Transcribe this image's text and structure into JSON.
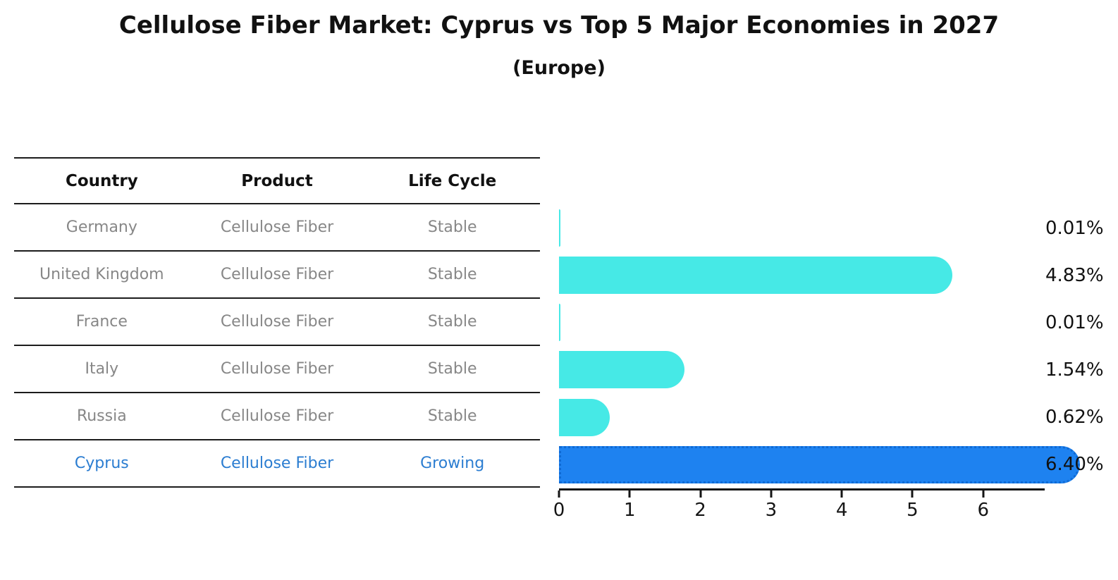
{
  "title": "Cellulose Fiber Market: Cyprus vs Top 5 Major Economies in 2027",
  "subtitle": "(Europe)",
  "table": {
    "headers": [
      "Country",
      "Product",
      "Life Cycle"
    ],
    "rows": [
      {
        "country": "Germany",
        "product": "Cellulose Fiber",
        "life_cycle": "Stable"
      },
      {
        "country": "United Kingdom",
        "product": "Cellulose Fiber",
        "life_cycle": "Stable"
      },
      {
        "country": "France",
        "product": "Cellulose Fiber",
        "life_cycle": "Stable"
      },
      {
        "country": "Italy",
        "product": "Cellulose Fiber",
        "life_cycle": "Stable"
      },
      {
        "country": "Russia",
        "product": "Cellulose Fiber",
        "life_cycle": "Stable"
      },
      {
        "country": "Cyprus",
        "product": "Cellulose Fiber",
        "life_cycle": "Growing"
      }
    ]
  },
  "chart_data": {
    "type": "bar",
    "orientation": "horizontal",
    "title": "Cellulose Fiber Market: Cyprus vs Top 5 Major Economies in 2027 (Europe)",
    "categories": [
      "Germany",
      "United Kingdom",
      "France",
      "Italy",
      "Russia",
      "Cyprus"
    ],
    "values": [
      0.01,
      4.83,
      0.01,
      1.54,
      0.62,
      6.4
    ],
    "value_labels": [
      "0.01%",
      "4.83%",
      "0.01%",
      "1.54%",
      "0.62%",
      "6.40%"
    ],
    "unit": "%",
    "x_ticks": [
      0,
      1,
      2,
      3,
      4,
      5,
      6
    ],
    "xlim": [
      0,
      6.87
    ],
    "xlabel": "",
    "ylabel": "",
    "grid": false,
    "legend": false,
    "highlight_index": 5
  },
  "colors": {
    "bar_default": "#46e9e6",
    "bar_highlight": "#1e82f0",
    "bar_highlight_edge": "#0f6ad4",
    "highlight_text": "#2b7dd1",
    "table_text": "#878787",
    "heading_text": "#111111",
    "axis": "#151515"
  }
}
